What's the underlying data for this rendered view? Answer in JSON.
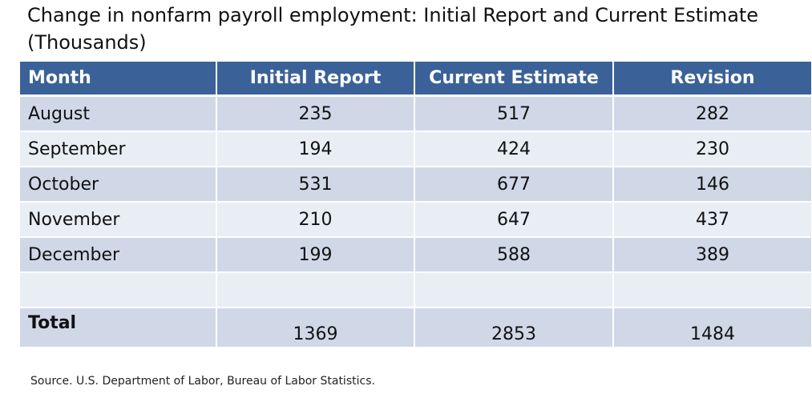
{
  "title": "Change in nonfarm payroll employment: Initial Report and Current Estimate (Thousands)",
  "chart_data": {
    "type": "table",
    "title": "Change in nonfarm payroll employment: Initial Report and Current Estimate (Thousands)",
    "columns": [
      "Month",
      "Initial Report",
      "Current Estimate",
      "Revision"
    ],
    "rows": [
      [
        "August",
        "235",
        "517",
        "282"
      ],
      [
        "September",
        "194",
        "424",
        "230"
      ],
      [
        "October",
        "531",
        "677",
        "146"
      ],
      [
        "November",
        "210",
        "647",
        "437"
      ],
      [
        "December",
        "199",
        "588",
        "389"
      ]
    ],
    "total": [
      "Total",
      "1369",
      "2853",
      "1484"
    ]
  },
  "source": "Source. U.S. Department of Labor, Bureau of Labor Statistics.",
  "colors": {
    "header_bg": "#3b6298",
    "row_dark": "#d0d8e8",
    "row_light": "#e9edf4"
  }
}
